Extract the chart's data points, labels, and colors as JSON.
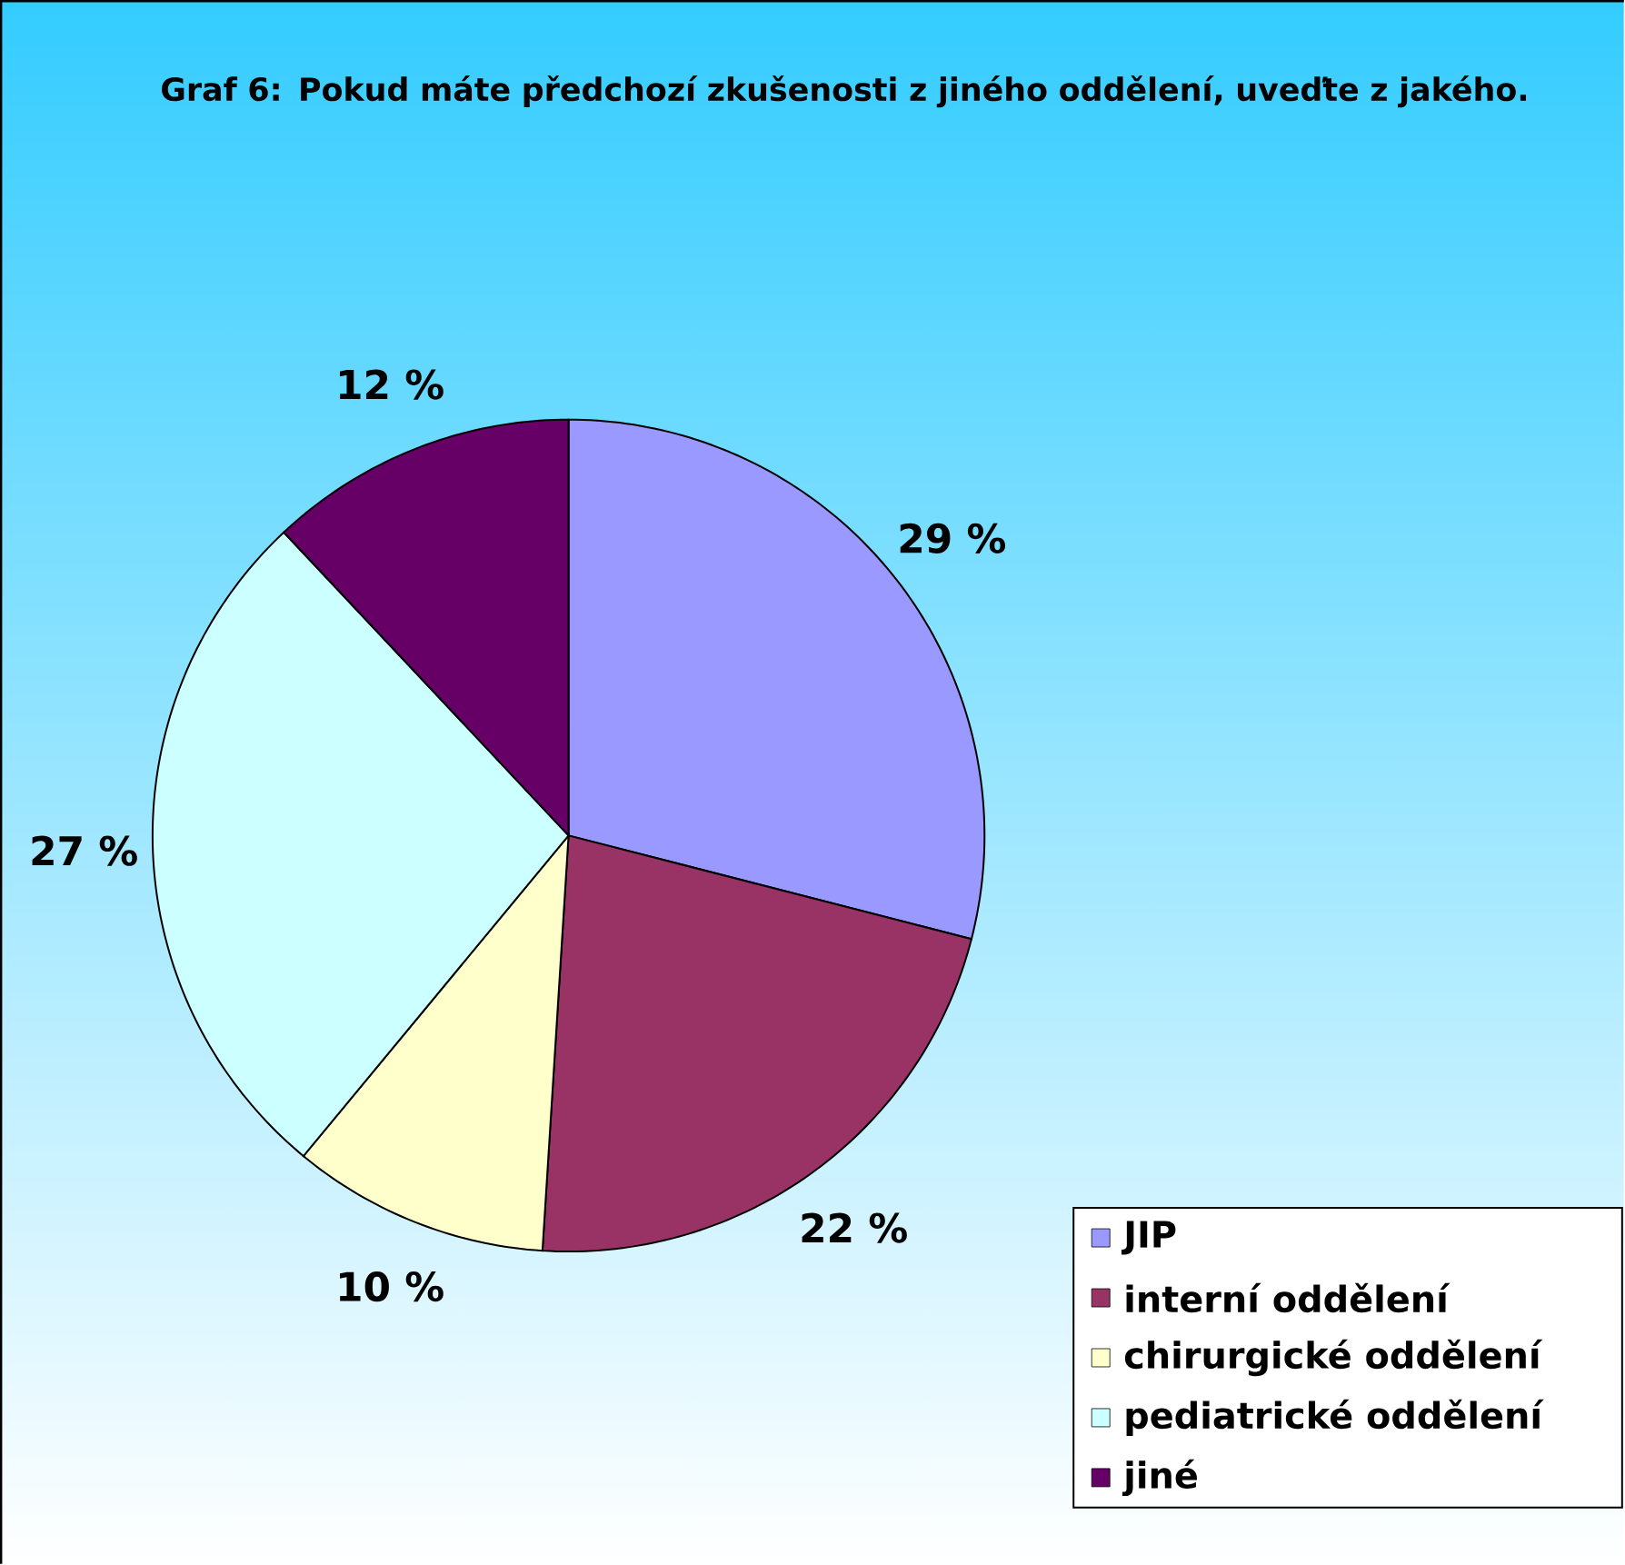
{
  "chart_data": {
    "type": "pie",
    "title": "Graf 6: Pokud máte předchozí zkušenosti z jiného oddělení, uveďte z jakého.",
    "categories": [
      "JIP",
      "interní oddělení",
      "chirurgické oddělení",
      "pediatrické oddělení",
      "jiné"
    ],
    "values": [
      29,
      22,
      10,
      27,
      12
    ],
    "value_labels": [
      "29 %",
      "22 %",
      "10 %",
      "27 %",
      "12 %"
    ],
    "colors": [
      "#9999ff",
      "#993366",
      "#ffffcc",
      "#ccffff",
      "#660066"
    ],
    "legend": "bottom right"
  }
}
